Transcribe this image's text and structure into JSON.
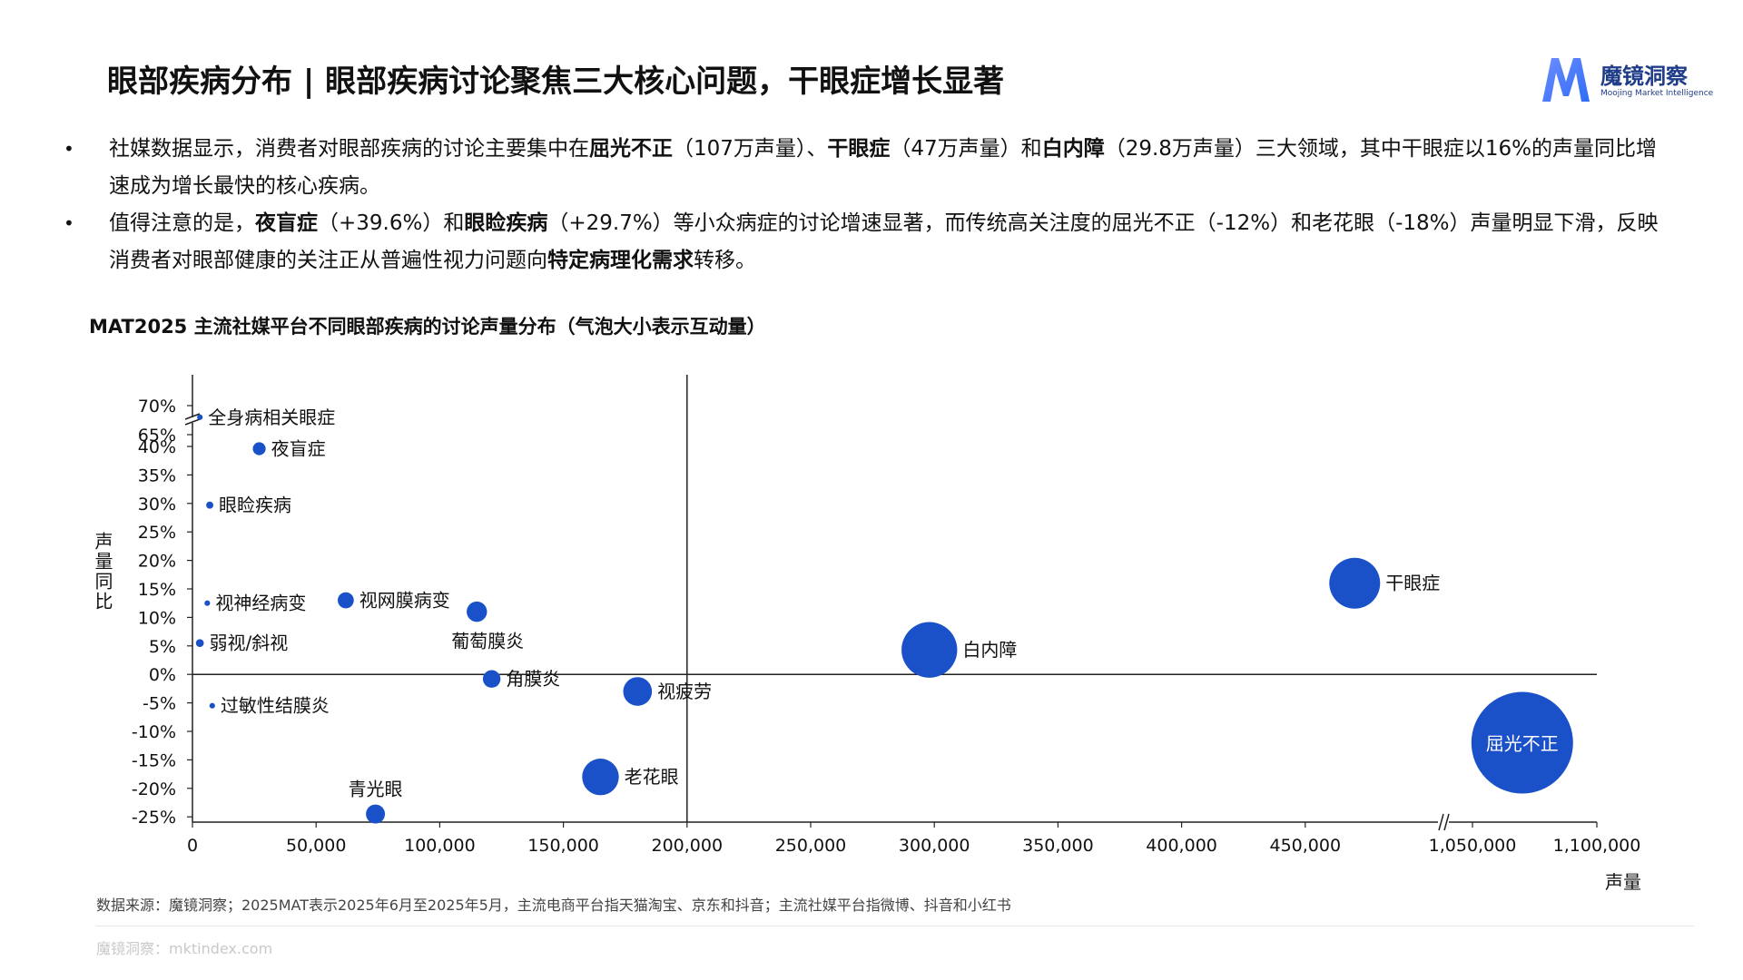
{
  "header": {
    "title": "眼部疾病分布 | 眼部疾病讨论聚焦三大核心问题，干眼症增长显著"
  },
  "logo": {
    "name": "魔镜洞察",
    "subtitle": "Moojing Market Intelligence",
    "accent_color": "#2f6df6"
  },
  "bullets": [
    {
      "parts": [
        {
          "text": "社媒数据显示，消费者对眼部疾病的讨论主要集中在",
          "bold": false
        },
        {
          "text": "屈光不正",
          "bold": true
        },
        {
          "text": "（107万声量）、",
          "bold": false
        },
        {
          "text": "干眼症",
          "bold": true
        },
        {
          "text": "（47万声量）和",
          "bold": false
        },
        {
          "text": "白内障",
          "bold": true
        },
        {
          "text": "（29.8万声量）三大领域，其中干眼症以16%的声量同比增速成为增长最快的核心疾病。",
          "bold": false
        }
      ]
    },
    {
      "parts": [
        {
          "text": "值得注意的是，",
          "bold": false
        },
        {
          "text": "夜盲症",
          "bold": true
        },
        {
          "text": "（+39.6%）和",
          "bold": false
        },
        {
          "text": "眼睑疾病",
          "bold": true
        },
        {
          "text": "（+29.7%）等小众病症的讨论增速显著，而传统高关注度的屈光不正（-12%）和老花眼（-18%）声量明显下滑，反映消费者对眼部健康的关注正从普遍性视力问题向",
          "bold": false
        },
        {
          "text": "特定病理化需求",
          "bold": true
        },
        {
          "text": "转移。",
          "bold": false
        }
      ]
    }
  ],
  "chart_data": {
    "type": "scatter",
    "bubble": true,
    "title": "MAT2025 主流社媒平台不同眼部疾病的讨论声量分布（气泡大小表示互动量）",
    "xlabel": "声量",
    "ylabel": "声量同比",
    "bubble_color": "#1a50c8",
    "x_ticks": [
      "0",
      "50,000",
      "100,000",
      "150,000",
      "200,000",
      "250,000",
      "300,000",
      "350,000",
      "400,000",
      "450,000",
      "1,050,000",
      "1,100,000"
    ],
    "y_ticks": [
      "70%",
      "65%",
      "40%",
      "35%",
      "30%",
      "25%",
      "20%",
      "15%",
      "10%",
      "5%",
      "0%",
      "-5%",
      "-10%",
      "-15%",
      "-20%",
      "-25%"
    ],
    "x_axis_break": [
      450000,
      1050000
    ],
    "y_axis_break": [
      40,
      65
    ],
    "reference_lines": {
      "x": 200000,
      "y": 0
    },
    "points": [
      {
        "label": "全身病相关眼症",
        "x": 3000,
        "y": 68,
        "size": 0.3
      },
      {
        "label": "夜盲症",
        "x": 27000,
        "y": 39.6,
        "size": 1.6
      },
      {
        "label": "眼睑疾病",
        "x": 7000,
        "y": 29.7,
        "size": 0.5
      },
      {
        "label": "视神经病变",
        "x": 6000,
        "y": 12.5,
        "size": 0.3
      },
      {
        "label": "视网膜病变",
        "x": 62000,
        "y": 13,
        "size": 2.5
      },
      {
        "label": "葡萄膜炎",
        "x": 115000,
        "y": 11,
        "size": 4
      },
      {
        "label": "弱视/斜视",
        "x": 3000,
        "y": 5.5,
        "size": 0.6
      },
      {
        "label": "角膜炎",
        "x": 121000,
        "y": -0.8,
        "size": 3
      },
      {
        "label": "过敏性结膜炎",
        "x": 8000,
        "y": -5.5,
        "size": 0.3
      },
      {
        "label": "视疲劳",
        "x": 180000,
        "y": -3,
        "size": 8
      },
      {
        "label": "老花眼",
        "x": 165000,
        "y": -18,
        "size": 13
      },
      {
        "label": "青光眼",
        "x": 74000,
        "y": -24.5,
        "size": 3.5
      },
      {
        "label": "白内障",
        "x": 298000,
        "y": 4.3,
        "size": 30
      },
      {
        "label": "干眼症",
        "x": 470000,
        "y": 16,
        "size": 25
      },
      {
        "label": "屈光不正",
        "x": 1070000,
        "y": -12,
        "size": 100
      }
    ]
  },
  "source": "数据来源：魔镜洞察；2025MAT表示2025年6月至2025年5月，主流电商平台指天猫淘宝、京东和抖音；主流社媒平台指微博、抖音和小红书",
  "footer": "魔镜洞察：mktindex.com"
}
